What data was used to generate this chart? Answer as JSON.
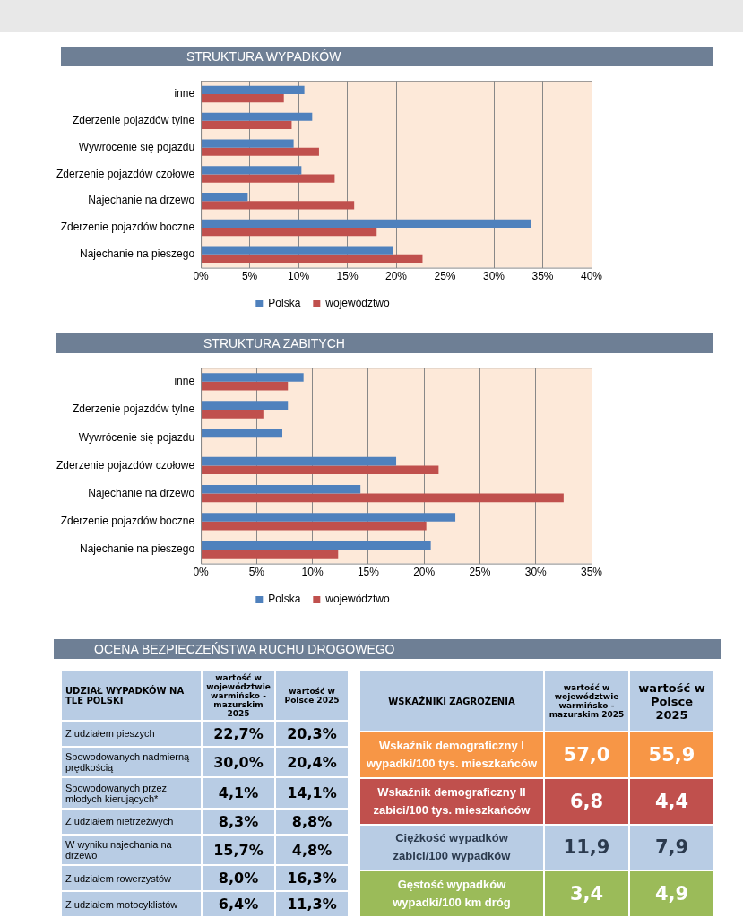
{
  "chart_data": [
    {
      "type": "bar",
      "title": "STRUKTURA WYPADKÓW",
      "orientation": "horizontal",
      "categories": [
        "inne",
        "Zderzenie pojazdów tylne",
        "Wywrócenie się pojazdu",
        "Zderzenie pojazdów czołowe",
        "Najechanie na drzewo",
        "Zderzenie pojazdów boczne",
        "Najechanie na pieszego"
      ],
      "series": [
        {
          "name": "Polska",
          "color": "#4f81bd",
          "values": [
            10.6,
            11.4,
            9.5,
            10.3,
            4.8,
            33.8,
            19.7
          ]
        },
        {
          "name": "województwo",
          "color": "#c0504d",
          "values": [
            8.5,
            9.3,
            12.1,
            13.7,
            15.7,
            18.0,
            22.7
          ]
        }
      ],
      "xlim": [
        0,
        40
      ],
      "xticks": [
        {
          "value": 0,
          "label": "0%"
        },
        {
          "value": 5,
          "label": "5%"
        },
        {
          "value": 10,
          "label": "10%"
        },
        {
          "value": 15,
          "label": "15%"
        },
        {
          "value": 20,
          "label": "20%"
        },
        {
          "value": 25,
          "label": "25%"
        },
        {
          "value": 30,
          "label": "30%"
        },
        {
          "value": 35,
          "label": "35%"
        },
        {
          "value": 40,
          "label": "40%"
        }
      ],
      "grid": "x",
      "legend": "bottom"
    },
    {
      "type": "bar",
      "title": "STRUKTURA ZABITYCH",
      "orientation": "horizontal",
      "categories": [
        "inne",
        "Zderzenie pojazdów tylne",
        "Wywrócenie się pojazdu",
        "Zderzenie pojazdów czołowe",
        "Najechanie na drzewo",
        "Zderzenie pojazdów boczne",
        "Najechanie na pieszego"
      ],
      "series": [
        {
          "name": "Polska",
          "color": "#4f81bd",
          "values": [
            9.2,
            7.8,
            7.3,
            17.5,
            14.3,
            22.8,
            20.6
          ]
        },
        {
          "name": "województwo",
          "color": "#c0504d",
          "values": [
            7.8,
            5.6,
            null,
            21.3,
            32.5,
            20.2,
            12.3
          ]
        }
      ],
      "xlim": [
        0,
        35
      ],
      "xticks": [
        {
          "value": 0,
          "label": "0%"
        },
        {
          "value": 5,
          "label": "5%"
        },
        {
          "value": 10,
          "label": "10%"
        },
        {
          "value": 15,
          "label": "15%"
        },
        {
          "value": 20,
          "label": "20%"
        },
        {
          "value": 25,
          "label": "25%"
        },
        {
          "value": 30,
          "label": "30%"
        },
        {
          "value": 35,
          "label": "35%"
        }
      ],
      "grid": "x",
      "legend": "bottom"
    },
    {
      "type": "other",
      "title": "OCENA BEZPIECZEŃSTWA RUCHU DROGOWEGO",
      "subtitle": "UDZIAŁ WYPADKÓW NA TLE POLSKI",
      "categories": [
        "Z udziałem pieszych",
        "Spowodowanych nadmierną prędkością",
        "Spowodowanych przez młodych kierujących*",
        "Z udziałem nietrzeźwych",
        "W wyniku najechania na drzewo",
        "Z udziałem rowerzystów",
        "Z udziałem motocyklistów"
      ],
      "series": [
        {
          "name": "wartość w województwie warmińsko - mazurskim 2025",
          "values": [
            22.7,
            30.0,
            4.1,
            8.3,
            15.7,
            8.0,
            6.4
          ],
          "value_labels": [
            "22,7%",
            "30,0%",
            "4,1%",
            "8,3%",
            "15,7%",
            "8,0%",
            "6,4%"
          ],
          "colors": [
            "#b8cce4",
            "#b8cce4",
            "#b8cce4",
            "#b8cce4",
            "#b8cce4",
            "#b8cce4",
            "#b8cce4"
          ]
        },
        {
          "name": "wartość w Polsce 2025",
          "values": [
            20.3,
            20.4,
            14.1,
            8.8,
            4.8,
            16.3,
            11.3
          ],
          "value_labels": [
            "20,3%",
            "20,4%",
            "14,1%",
            "8,8%",
            "4,8%",
            "16,3%",
            "11,3%"
          ],
          "colors": [
            "#b8cce4",
            "#b8cce4",
            "#b8cce4",
            "#b8cce4",
            "#b8cce4",
            "#b8cce4",
            "#b8cce4"
          ]
        }
      ]
    },
    {
      "type": "other",
      "subtitle": "WSKAŹNIKI ZAGROŻENIA",
      "categories": [
        "Wskaźnik demograficzny I\nwypadki/100 tys. mieszkańców",
        "Wskaźnik demograficzny II\nzabici/100 tys. mieszkańców",
        "Ciężkość wypadków\nzabici/100 wypadków",
        "Gęstość wypadków\nwypadki/100 km dróg"
      ],
      "colors": [
        "#f79646",
        "#c0504d",
        "#b8cce4",
        "#9bbb59"
      ],
      "series": [
        {
          "name": "wartość w województwie warmińsko - mazurskim 2025",
          "values": [
            57.0,
            6.8,
            11.9,
            3.4
          ],
          "value_labels": [
            "57,0",
            "6,8",
            "11,9",
            "3,4"
          ],
          "colors": [
            "#f79646",
            "#c0504d",
            "#b8cce4",
            "#9bbb59"
          ]
        },
        {
          "name": "wartość w Polsce 2025",
          "values": [
            55.9,
            4.4,
            7.9,
            4.9
          ],
          "value_labels": [
            "55,9",
            "4,4",
            "7,9",
            "4,9"
          ],
          "colors": [
            "#f79646",
            "#c0504d",
            "#b8cce4",
            "#9bbb59"
          ]
        }
      ]
    }
  ]
}
